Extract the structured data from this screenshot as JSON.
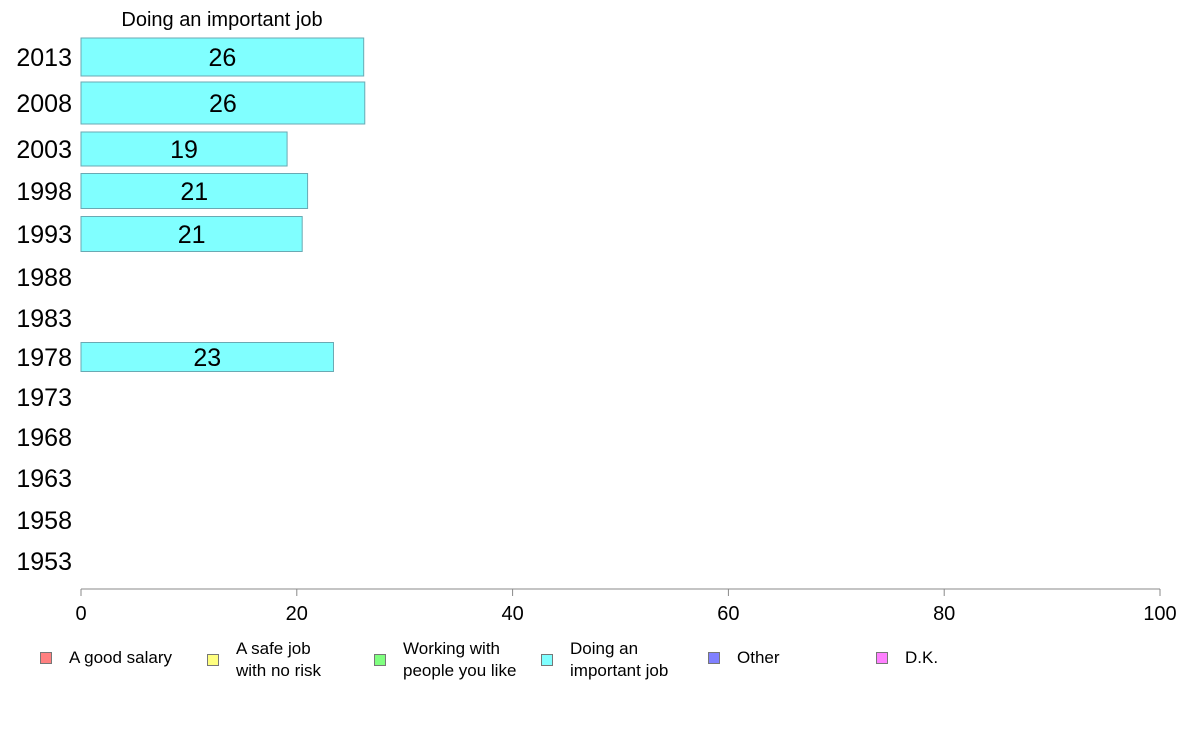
{
  "chart_data": {
    "type": "bar",
    "orientation": "horizontal",
    "title": "Doing an important job",
    "categories": [
      "2013",
      "2008",
      "2003",
      "1998",
      "1993",
      "1988",
      "1983",
      "1978",
      "1973",
      "1968",
      "1963",
      "1958",
      "1953"
    ],
    "series": [
      {
        "name": "Doing an important job",
        "color": "#80ffff",
        "values": [
          26.2,
          26.3,
          19.1,
          21.0,
          20.5,
          null,
          null,
          23.4,
          null,
          null,
          null,
          null,
          null
        ],
        "labels": [
          "26",
          "26",
          "19",
          "21",
          "21",
          "",
          "",
          "23",
          "",
          "",
          "",
          "",
          ""
        ]
      }
    ],
    "xlim": [
      0,
      100
    ],
    "xticks": [
      "0",
      "20",
      "40",
      "60",
      "80",
      "100"
    ],
    "grid": false,
    "legend_position": "bottom",
    "legend": [
      {
        "label": "A good salary",
        "color": "#ff8080"
      },
      {
        "label": "A safe job\nwith no risk",
        "color": "#ffff80"
      },
      {
        "label": "Working with\npeople you like",
        "color": "#80ff80"
      },
      {
        "label": "Doing an\nimportant job",
        "color": "#80ffff"
      },
      {
        "label": "Other",
        "color": "#8080ff"
      },
      {
        "label": "D.K.",
        "color": "#ff80ff"
      }
    ]
  }
}
